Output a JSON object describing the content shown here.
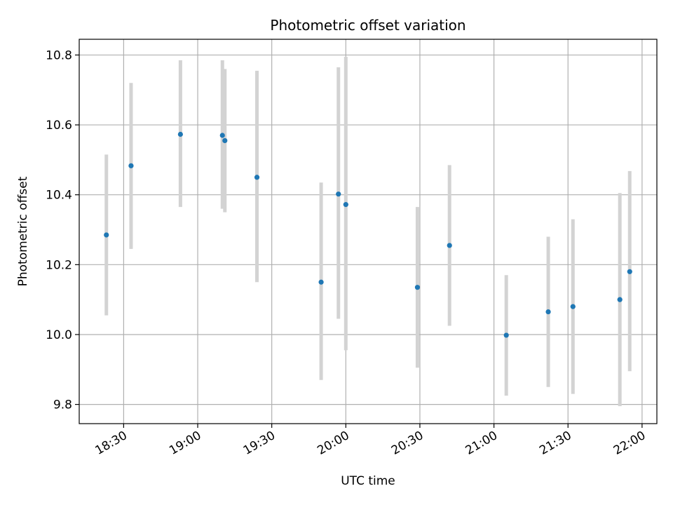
{
  "chart_data": {
    "type": "scatter",
    "title": "Photometric offset variation",
    "xlabel": "UTC time",
    "ylabel": "Photometric offset",
    "xlim": [
      "18:12",
      "22:06"
    ],
    "ylim": [
      9.745,
      10.845
    ],
    "x_ticks": [
      "18:30",
      "19:00",
      "19:30",
      "20:00",
      "20:30",
      "21:00",
      "21:30",
      "22:00"
    ],
    "y_ticks": [
      9.8,
      10.0,
      10.2,
      10.4,
      10.6,
      10.8
    ],
    "y_tick_labels": [
      "9.8",
      "10.0",
      "10.2",
      "10.4",
      "10.6",
      "10.8"
    ],
    "grid": true,
    "marker_color": "#1f77b4",
    "errorbar_color": "#d3d3d3",
    "points": [
      {
        "time": "18:23",
        "y": 10.285,
        "ylow": 10.055,
        "yhigh": 10.515
      },
      {
        "time": "18:33",
        "y": 10.483,
        "ylow": 10.245,
        "yhigh": 10.72
      },
      {
        "time": "18:53",
        "y": 10.573,
        "ylow": 10.365,
        "yhigh": 10.785
      },
      {
        "time": "19:10",
        "y": 10.57,
        "ylow": 10.36,
        "yhigh": 10.785
      },
      {
        "time": "19:11",
        "y": 10.555,
        "ylow": 10.35,
        "yhigh": 10.76
      },
      {
        "time": "19:24",
        "y": 10.45,
        "ylow": 10.15,
        "yhigh": 10.755
      },
      {
        "time": "19:50",
        "y": 10.15,
        "ylow": 9.87,
        "yhigh": 10.435
      },
      {
        "time": "19:57",
        "y": 10.402,
        "ylow": 10.045,
        "yhigh": 10.765
      },
      {
        "time": "20:00",
        "y": 10.372,
        "ylow": 9.955,
        "yhigh": 10.795
      },
      {
        "time": "20:29",
        "y": 10.135,
        "ylow": 9.905,
        "yhigh": 10.365
      },
      {
        "time": "20:42",
        "y": 10.255,
        "ylow": 10.025,
        "yhigh": 10.485
      },
      {
        "time": "21:05",
        "y": 9.998,
        "ylow": 9.825,
        "yhigh": 10.17
      },
      {
        "time": "21:22",
        "y": 10.065,
        "ylow": 9.85,
        "yhigh": 10.28
      },
      {
        "time": "21:32",
        "y": 10.08,
        "ylow": 9.83,
        "yhigh": 10.33
      },
      {
        "time": "21:51",
        "y": 10.1,
        "ylow": 9.795,
        "yhigh": 10.405
      },
      {
        "time": "21:55",
        "y": 10.18,
        "ylow": 9.895,
        "yhigh": 10.468
      }
    ]
  }
}
